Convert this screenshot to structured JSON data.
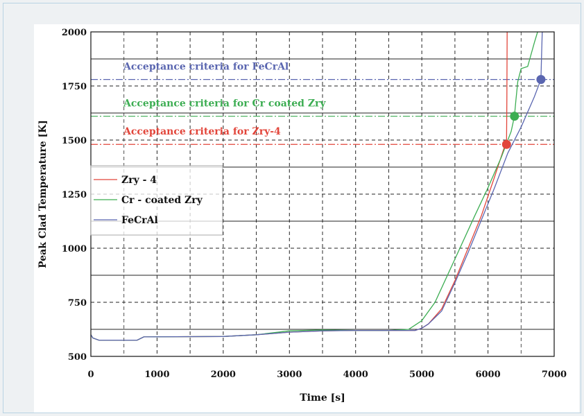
{
  "chart_data": {
    "type": "line",
    "xlabel": "Time [s]",
    "ylabel": "Peak Clad Temperature [K]",
    "xlim": [
      0,
      7000
    ],
    "ylim": [
      450,
      2000
    ],
    "x_ticks": [
      0,
      1000,
      2000,
      3000,
      4000,
      5000,
      6000,
      7000
    ],
    "x_tick_labels": [
      "0",
      "1000",
      "2000",
      "3000",
      "4000",
      "5000",
      "6000",
      "7000"
    ],
    "y_ticks": [
      500,
      750,
      1000,
      1250,
      1500,
      1750,
      2000
    ],
    "y_tick_labels": [
      "500",
      "750",
      "1000",
      "1250",
      "1500",
      "1750",
      "2000"
    ],
    "grid": true,
    "legend_position": "middle-left",
    "criteria": [
      {
        "label": "Acceptance criteria for FeCrAl",
        "value": 1780,
        "color": "#5a66b0"
      },
      {
        "label": "Acceptance criteria for Cr coated Zry",
        "value": 1610,
        "color": "#3cad52"
      },
      {
        "label": "Acceptance criteria for Zry-4",
        "value": 1480,
        "color": "#e2453a"
      }
    ],
    "series": [
      {
        "name": "Zry - 4",
        "color": "#e2453a",
        "x": [
          0,
          30,
          120,
          700,
          800,
          2000,
          2500,
          3000,
          3500,
          4000,
          4500,
          4900,
          5000,
          5100,
          5300,
          5500,
          5700,
          5900,
          6100,
          6250,
          6280,
          6285,
          6290
        ],
        "y": [
          600,
          585,
          575,
          575,
          590,
          592,
          600,
          612,
          618,
          620,
          620,
          620,
          630,
          650,
          720,
          850,
          1000,
          1150,
          1330,
          1470,
          1480,
          1700,
          2000
        ],
        "end_marker": {
          "x": 6280,
          "y": 1480
        }
      },
      {
        "name": "Cr - coated Zry",
        "color": "#3cad52",
        "x": [
          0,
          30,
          120,
          700,
          800,
          2000,
          2500,
          3000,
          3500,
          4000,
          4500,
          4800,
          4900,
          5000,
          5200,
          5500,
          5800,
          6000,
          6200,
          6350,
          6400,
          6420,
          6450,
          6500,
          6600,
          6700,
          6750
        ],
        "y": [
          600,
          585,
          575,
          575,
          590,
          592,
          600,
          618,
          622,
          620,
          620,
          625,
          645,
          665,
          750,
          950,
          1150,
          1280,
          1420,
          1540,
          1610,
          1680,
          1770,
          1830,
          1840,
          1950,
          2000
        ],
        "end_marker": {
          "x": 6400,
          "y": 1610
        }
      },
      {
        "name": "FeCrAl",
        "color": "#5a66b0",
        "x": [
          0,
          30,
          120,
          700,
          800,
          2000,
          2500,
          3000,
          3500,
          4000,
          4500,
          4900,
          5000,
          5100,
          5300,
          5500,
          5700,
          5900,
          6100,
          6300,
          6500,
          6700,
          6800,
          6810,
          6820
        ],
        "y": [
          600,
          585,
          575,
          575,
          590,
          592,
          600,
          612,
          618,
          620,
          620,
          620,
          630,
          650,
          710,
          840,
          980,
          1130,
          1280,
          1440,
          1560,
          1700,
          1780,
          1900,
          2000
        ],
        "end_marker": {
          "x": 6800,
          "y": 1780
        }
      }
    ]
  }
}
